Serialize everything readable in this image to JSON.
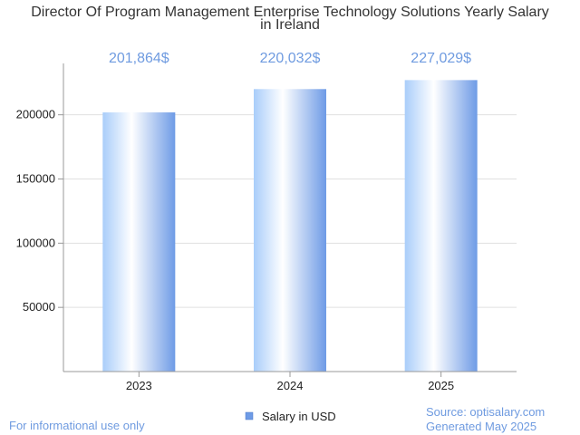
{
  "chart_data": {
    "type": "bar",
    "title": "Director Of Program Management Enterprise Technology Solutions Yearly Salary in Ireland",
    "title_lines": [
      "Director Of Program Management Enterprise Technology Solutions Yearly Salary",
      "in Ireland"
    ],
    "categories": [
      "2023",
      "2024",
      "2025"
    ],
    "series": [
      {
        "name": "Salary in USD",
        "values": [
          201864,
          220032,
          227029
        ]
      }
    ],
    "data_labels": [
      "201,864$",
      "220,032$",
      "227,029$"
    ],
    "y_ticks": [
      50000,
      100000,
      150000,
      200000
    ],
    "ylim": [
      0,
      240000
    ],
    "grid": true,
    "legend_position": "bottom"
  },
  "colors": {
    "bar_light": "#ffffff",
    "bar_mid": "#b8d4fb",
    "bar_dark": "#6e9be6",
    "label": "#6f9be0",
    "grid": "#e0e0e0",
    "axis": "#999999"
  },
  "footer": {
    "disclaimer": "For informational use only",
    "source": "Source: optisalary.com",
    "generated": "Generated May 2025"
  }
}
